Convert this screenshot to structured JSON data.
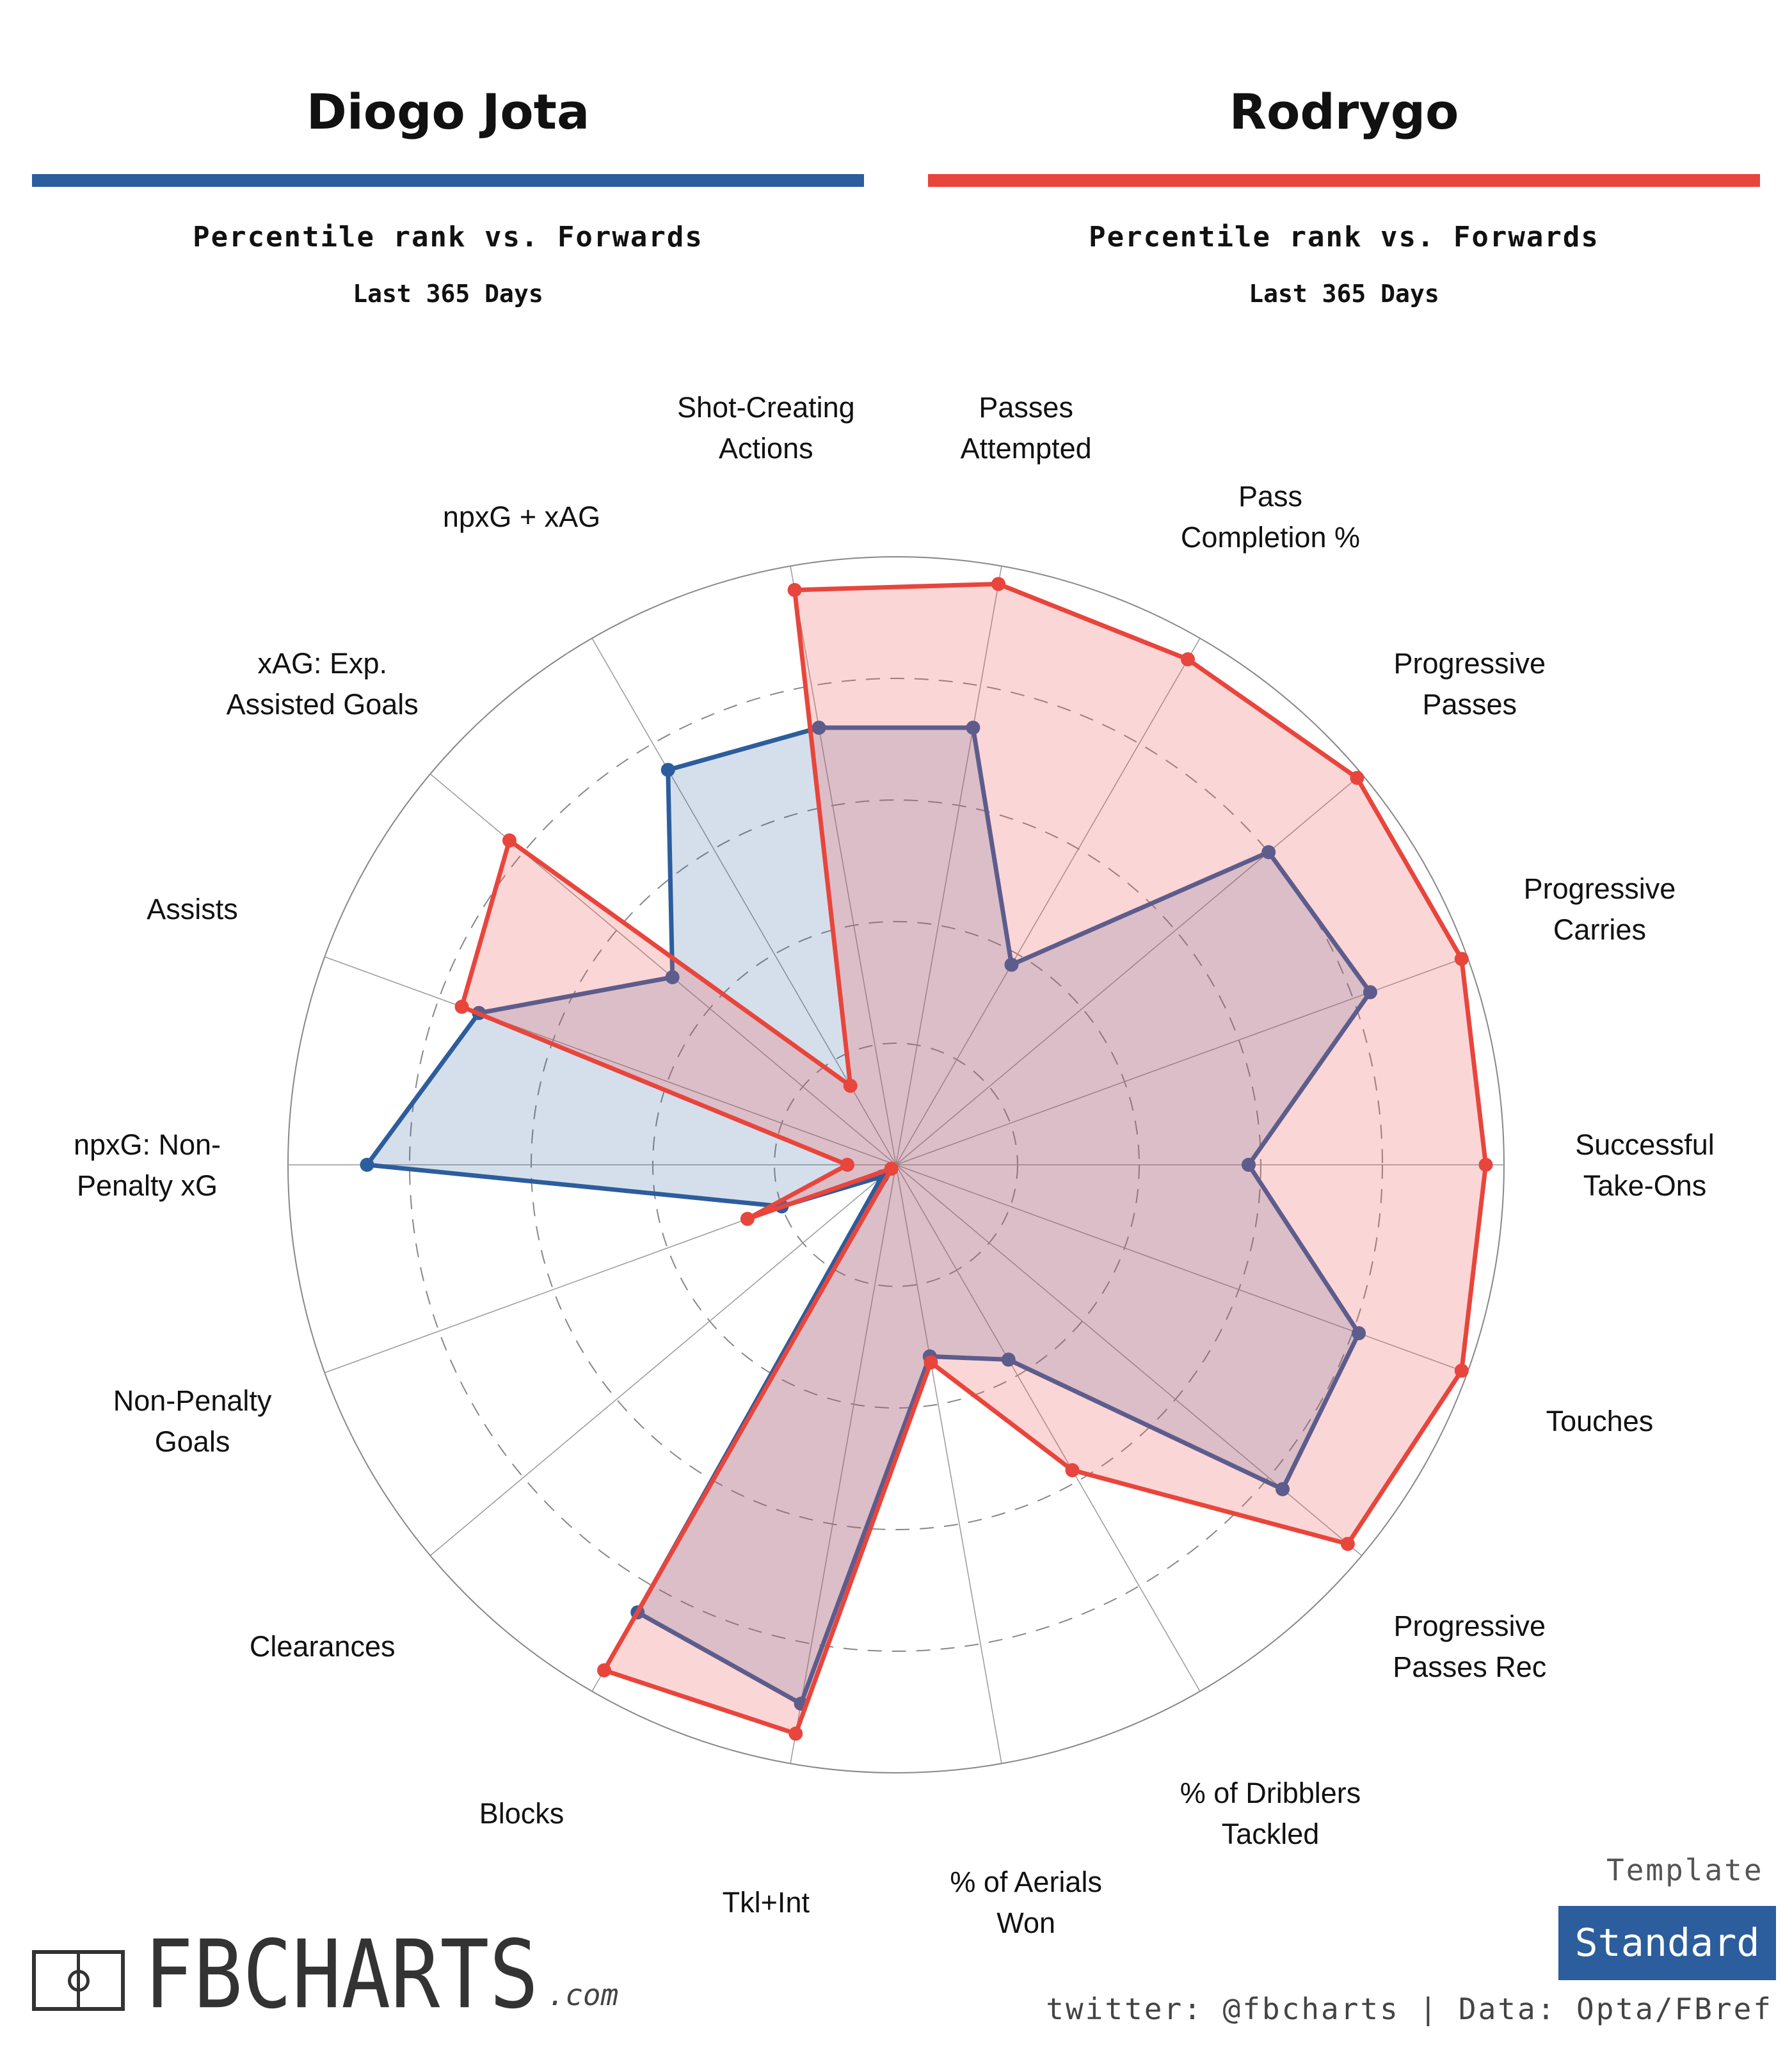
{
  "players": [
    {
      "name": "Diogo Jota",
      "color": "#2c5d9c",
      "fill": "rgba(44,93,156,0.20)",
      "subtitle": "Percentile rank vs. Forwards",
      "period": "Last 365 Days"
    },
    {
      "name": "Rodrygo",
      "color": "#e8453c",
      "fill": "rgba(240,90,90,0.25)",
      "subtitle": "Percentile rank vs. Forwards",
      "period": "Last 365 Days"
    }
  ],
  "chart_data": {
    "type": "radar",
    "range": [
      0,
      100
    ],
    "gridlines": [
      20,
      40,
      60,
      80
    ],
    "categories": [
      [
        "Passes",
        "Attempted"
      ],
      [
        "Pass",
        "Completion %"
      ],
      [
        "Progressive",
        "Passes"
      ],
      [
        "Progressive",
        "Carries"
      ],
      [
        "Successful",
        "Take-Ons"
      ],
      [
        "Touches"
      ],
      [
        "Progressive",
        "Passes Rec"
      ],
      [
        "% of Dribblers",
        "Tackled"
      ],
      [
        "% of Aerials",
        "Won"
      ],
      [
        "Tkl+Int"
      ],
      [
        "Blocks"
      ],
      [
        "Clearances"
      ],
      [
        "Non-Penalty",
        "Goals"
      ],
      [
        "npxG: Non-",
        "Penalty xG"
      ],
      [
        "Assists"
      ],
      [
        "xAG: Exp.",
        "Assisted Goals"
      ],
      [
        "npxG + xAG"
      ],
      [
        "Shot-Creating",
        "Actions"
      ]
    ],
    "series": [
      {
        "name": "Diogo Jota",
        "values": [
          73,
          38,
          80,
          83,
          58,
          81,
          83,
          37,
          32,
          90,
          85,
          3,
          20,
          87,
          73,
          48,
          75,
          73
        ]
      },
      {
        "name": "Rodrygo",
        "values": [
          97,
          96,
          99,
          99,
          97,
          99,
          97,
          58,
          33,
          95,
          96,
          1,
          26,
          8,
          76,
          83,
          15,
          96
        ]
      }
    ]
  },
  "template": {
    "label": "Template",
    "value": "Standard",
    "color": "#2c5d9c"
  },
  "logo": {
    "text": "FBCHARTS",
    "suffix": ".com"
  },
  "credits": "twitter: @fbcharts | Data: Opta/FBref"
}
